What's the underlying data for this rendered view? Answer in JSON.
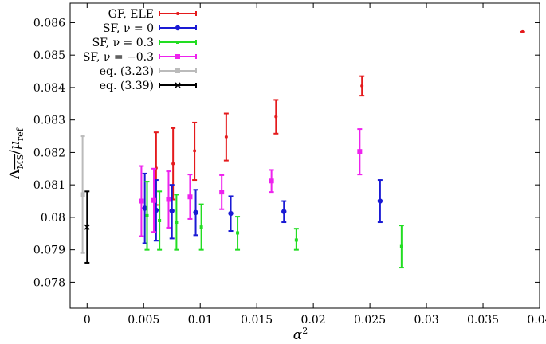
{
  "chart_data": {
    "type": "scatter",
    "xlabel": "α²",
    "ylabel": "Λ_MS-bar / μ_ref",
    "ylabel_parts": {
      "lambda": "Λ",
      "sub": "MS",
      "slash": "/",
      "mu": "μ",
      "musub": "ref"
    },
    "xlabel_parts": {
      "base": "α",
      "sup": "2"
    },
    "xlim": [
      -0.0015,
      0.04
    ],
    "ylim": [
      0.0772,
      0.0866
    ],
    "grid": false,
    "legend_position": "top-left",
    "x_ticks": [
      0,
      0.005,
      0.01,
      0.015,
      0.02,
      0.025,
      0.03,
      0.035,
      0.04
    ],
    "x_tick_labels": [
      "0",
      "0.005",
      "0.01",
      "0.015",
      "0.02",
      "0.025",
      "0.03",
      "0.035",
      "0.04"
    ],
    "y_ticks": [
      0.078,
      0.079,
      0.08,
      0.081,
      0.082,
      0.083,
      0.084,
      0.085,
      0.086
    ],
    "y_tick_labels": [
      "0.078",
      "0.079",
      "0.08",
      "0.081",
      "0.082",
      "0.083",
      "0.084",
      "0.085",
      "0.086"
    ],
    "series": [
      {
        "name": "GF, ELE",
        "color": "#e41a1c",
        "marker": "dot",
        "points": [
          {
            "x": 0.0061,
            "y": 0.08152,
            "lo": 0.08038,
            "hi": 0.08262
          },
          {
            "x": 0.0076,
            "y": 0.08165,
            "lo": 0.08055,
            "hi": 0.08275
          },
          {
            "x": 0.0095,
            "y": 0.08205,
            "lo": 0.08115,
            "hi": 0.08292
          },
          {
            "x": 0.0123,
            "y": 0.08248,
            "lo": 0.08175,
            "hi": 0.0832
          },
          {
            "x": 0.0167,
            "y": 0.0831,
            "lo": 0.08258,
            "hi": 0.08362
          },
          {
            "x": 0.0243,
            "y": 0.08405,
            "lo": 0.08375,
            "hi": 0.08435
          },
          {
            "x": 0.0385,
            "y": 0.08572,
            "lo": 0.08572,
            "hi": 0.08572
          }
        ]
      },
      {
        "name": "SF, ν = 0",
        "color": "#1a1ad4",
        "marker": "circle",
        "points": [
          {
            "x": 0.0051,
            "y": 0.08028,
            "lo": 0.0792,
            "hi": 0.08135
          },
          {
            "x": 0.0061,
            "y": 0.08022,
            "lo": 0.07928,
            "hi": 0.08115
          },
          {
            "x": 0.0075,
            "y": 0.0802,
            "lo": 0.07935,
            "hi": 0.081
          },
          {
            "x": 0.0096,
            "y": 0.08015,
            "lo": 0.07945,
            "hi": 0.08085
          },
          {
            "x": 0.0127,
            "y": 0.08012,
            "lo": 0.07958,
            "hi": 0.08065
          },
          {
            "x": 0.0174,
            "y": 0.08018,
            "lo": 0.07985,
            "hi": 0.0805
          },
          {
            "x": 0.0259,
            "y": 0.0805,
            "lo": 0.07985,
            "hi": 0.08115
          }
        ]
      },
      {
        "name": "SF, ν = 0.3",
        "color": "#22dd22",
        "marker": "square-small",
        "points": [
          {
            "x": 0.0053,
            "y": 0.08005,
            "lo": 0.079,
            "hi": 0.0811
          },
          {
            "x": 0.0064,
            "y": 0.0799,
            "lo": 0.079,
            "hi": 0.0808
          },
          {
            "x": 0.0079,
            "y": 0.07985,
            "lo": 0.079,
            "hi": 0.0807
          },
          {
            "x": 0.0101,
            "y": 0.0797,
            "lo": 0.079,
            "hi": 0.0804
          },
          {
            "x": 0.0133,
            "y": 0.07952,
            "lo": 0.079,
            "hi": 0.08002
          },
          {
            "x": 0.0185,
            "y": 0.0793,
            "lo": 0.079,
            "hi": 0.07965
          },
          {
            "x": 0.0278,
            "y": 0.0791,
            "lo": 0.07845,
            "hi": 0.07975
          }
        ]
      },
      {
        "name": "SF, ν = −0.3",
        "color": "#ee22ee",
        "marker": "square",
        "points": [
          {
            "x": 0.0048,
            "y": 0.0805,
            "lo": 0.07942,
            "hi": 0.08158
          },
          {
            "x": 0.0059,
            "y": 0.08052,
            "lo": 0.07955,
            "hi": 0.0815
          },
          {
            "x": 0.0072,
            "y": 0.08055,
            "lo": 0.07968,
            "hi": 0.08142
          },
          {
            "x": 0.0091,
            "y": 0.08063,
            "lo": 0.07995,
            "hi": 0.08132
          },
          {
            "x": 0.0119,
            "y": 0.08078,
            "lo": 0.08025,
            "hi": 0.0813
          },
          {
            "x": 0.0163,
            "y": 0.08112,
            "lo": 0.08078,
            "hi": 0.08146
          },
          {
            "x": 0.0241,
            "y": 0.08203,
            "lo": 0.08132,
            "hi": 0.08272
          }
        ]
      },
      {
        "name": "eq. (3.23)",
        "color": "#bbbbbb",
        "marker": "square",
        "points": [
          {
            "x": -0.0004,
            "y": 0.0807,
            "lo": 0.0789,
            "hi": 0.0825
          }
        ]
      },
      {
        "name": "eq. (3.39)",
        "color": "#000000",
        "marker": "cross",
        "points": [
          {
            "x": 0.0,
            "y": 0.0797,
            "lo": 0.0786,
            "hi": 0.0808
          }
        ]
      }
    ]
  }
}
